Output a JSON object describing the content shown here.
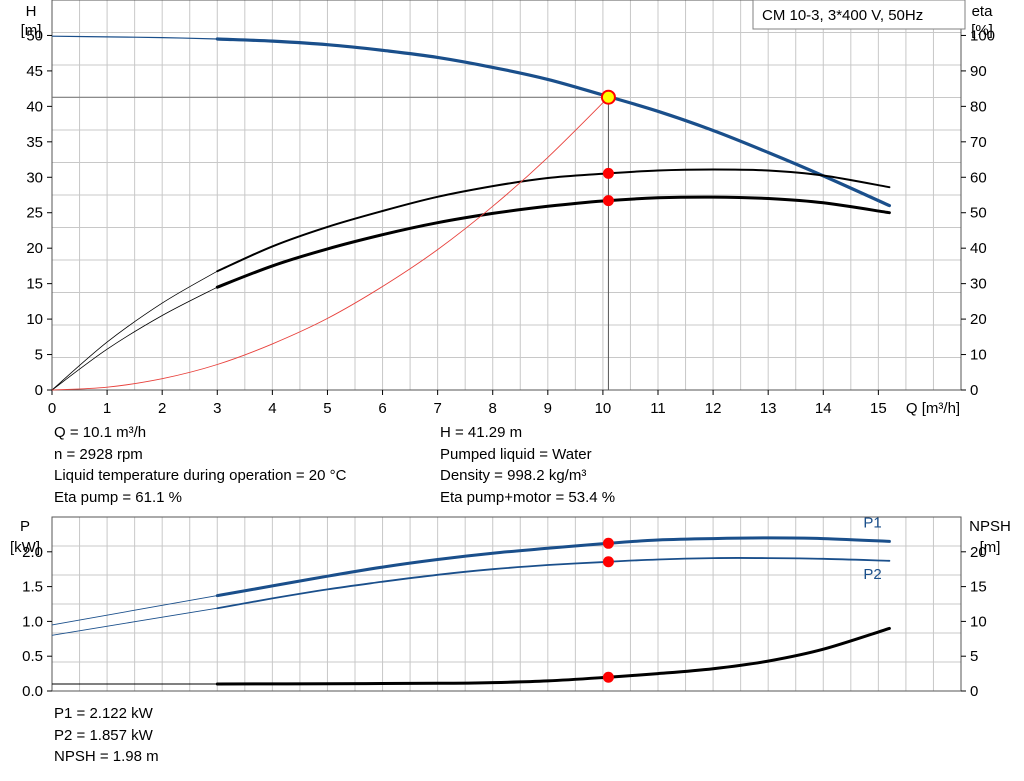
{
  "pump_label": "CM 10-3, 3*400 V, 50Hz",
  "colors": {
    "head_curve": "#1a4f8b",
    "power_curve": "#1a4f8b",
    "efficiency_curve": "#000000",
    "system_curve": "#e8413c",
    "duty_point": "#ff0000",
    "duty_head_point_fill": "#ffff00",
    "grid": "#c8c8c8"
  },
  "info_top": {
    "left": [
      "Q = 10.1 m³/h",
      "n = 2928 rpm",
      "Liquid temperature during operation = 20 °C",
      "Eta pump = 61.1 %"
    ],
    "right": [
      "H = 41.29 m",
      "Pumped liquid = Water",
      "Density = 998.2 kg/m³",
      "Eta pump+motor = 53.4 %"
    ]
  },
  "info_bottom": [
    "P1 = 2.122 kW",
    "P2 = 1.857 kW",
    "NPSH = 1.98 m"
  ],
  "chart_data": [
    {
      "type": "line",
      "xlabel": "Q [m³/h]",
      "ylabel": "H",
      "ylabel_unit": "[m]",
      "y2label": "eta",
      "y2label_unit": "[%]",
      "xlim": [
        0,
        16.5
      ],
      "ylim": [
        0,
        55
      ],
      "y2lim": [
        0,
        110
      ],
      "xticks": [
        0,
        1,
        2,
        3,
        4,
        5,
        6,
        7,
        8,
        9,
        10,
        11,
        12,
        13,
        14,
        15
      ],
      "yticks": [
        0,
        5,
        10,
        15,
        20,
        25,
        30,
        35,
        40,
        45,
        50
      ],
      "y2ticks": [
        0,
        10,
        20,
        30,
        40,
        50,
        60,
        70,
        80,
        90,
        100
      ],
      "grid": true,
      "duty_point": {
        "Q": 10.1,
        "H": 41.29
      },
      "series": [
        {
          "axis": "left",
          "style": "head",
          "x": [
            0,
            1,
            2,
            3,
            4,
            5,
            6,
            7,
            8,
            9,
            10,
            11,
            12,
            13,
            14,
            15.2
          ],
          "y": [
            49.9,
            49.8,
            49.7,
            49.5,
            49.2,
            48.7,
            47.9,
            46.9,
            45.5,
            43.8,
            41.6,
            39.3,
            36.6,
            33.5,
            30.2,
            26.0
          ],
          "thin_until": 3
        },
        {
          "axis": "right",
          "style": "eta_pump",
          "x": [
            0,
            1,
            2,
            3,
            4,
            5,
            6,
            7,
            8,
            9,
            10,
            11,
            12,
            13,
            14,
            15.2
          ],
          "y": [
            0,
            13.5,
            24.5,
            33.5,
            40.5,
            46.0,
            50.5,
            54.5,
            57.5,
            59.8,
            61.0,
            61.9,
            62.2,
            61.9,
            60.5,
            57.2
          ],
          "thin_until": 3
        },
        {
          "axis": "right",
          "style": "eta_total",
          "x": [
            0,
            1,
            2,
            3,
            4,
            5,
            6,
            7,
            8,
            9,
            10,
            11,
            12,
            13,
            14,
            15.2
          ],
          "y": [
            0,
            11.5,
            21.0,
            29.0,
            35.0,
            39.8,
            43.8,
            47.2,
            49.8,
            51.8,
            53.3,
            54.2,
            54.4,
            54.0,
            52.8,
            50.0
          ],
          "thin_until": 3
        },
        {
          "axis": "left",
          "style": "system",
          "x": [
            0,
            1,
            2,
            3,
            4,
            5,
            6,
            7,
            8,
            9,
            10.1
          ],
          "y": [
            0,
            0.4,
            1.6,
            3.6,
            6.5,
            10.1,
            14.6,
            19.8,
            25.9,
            32.8,
            41.29
          ]
        }
      ],
      "markers": [
        {
          "axis": "left",
          "x": 10.1,
          "y": 41.29,
          "kind": "duty"
        },
        {
          "axis": "right",
          "x": 10.1,
          "y": 61.1,
          "kind": "point"
        },
        {
          "axis": "right",
          "x": 10.1,
          "y": 53.4,
          "kind": "point"
        }
      ]
    },
    {
      "type": "line",
      "ylabel": "P",
      "ylabel_unit": "[kW]",
      "y2label": "NPSH",
      "y2label_unit": "[m]",
      "xlim": [
        0,
        16.5
      ],
      "ylim": [
        0,
        2.5
      ],
      "y2lim": [
        0,
        25
      ],
      "yticks": [
        "0.0",
        "0.5",
        "1.0",
        "1.5",
        "2.0"
      ],
      "y2ticks": [
        0,
        5,
        10,
        15,
        20
      ],
      "grid": true,
      "series": [
        {
          "name": "P1",
          "axis": "left",
          "style": "power_thick",
          "x": [
            0,
            3,
            4,
            5,
            6,
            7,
            8,
            9,
            10.1,
            11,
            12,
            13,
            14,
            15.2
          ],
          "y": [
            0.95,
            1.37,
            1.51,
            1.65,
            1.78,
            1.89,
            1.98,
            2.05,
            2.122,
            2.17,
            2.19,
            2.2,
            2.19,
            2.15
          ],
          "thin_until": 3
        },
        {
          "name": "P2",
          "axis": "left",
          "style": "power_thin",
          "x": [
            0,
            3,
            4,
            5,
            6,
            7,
            8,
            9,
            10.1,
            11,
            12,
            13,
            14,
            15.2
          ],
          "y": [
            0.8,
            1.19,
            1.33,
            1.46,
            1.57,
            1.67,
            1.75,
            1.81,
            1.857,
            1.89,
            1.91,
            1.91,
            1.9,
            1.87
          ],
          "thin_until": 3
        },
        {
          "axis": "right",
          "style": "npsh",
          "x": [
            0,
            3,
            5,
            7,
            8,
            9,
            10.1,
            11,
            12,
            13,
            14,
            15.2
          ],
          "y": [
            1.0,
            1.0,
            1.05,
            1.1,
            1.2,
            1.45,
            1.98,
            2.5,
            3.2,
            4.3,
            6.0,
            9.0
          ],
          "thin_until": 3
        }
      ],
      "markers": [
        {
          "axis": "left",
          "x": 10.1,
          "y": 2.122,
          "kind": "point"
        },
        {
          "axis": "left",
          "x": 10.1,
          "y": 1.857,
          "kind": "point"
        },
        {
          "axis": "right",
          "x": 10.1,
          "y": 1.98,
          "kind": "point"
        }
      ]
    }
  ]
}
